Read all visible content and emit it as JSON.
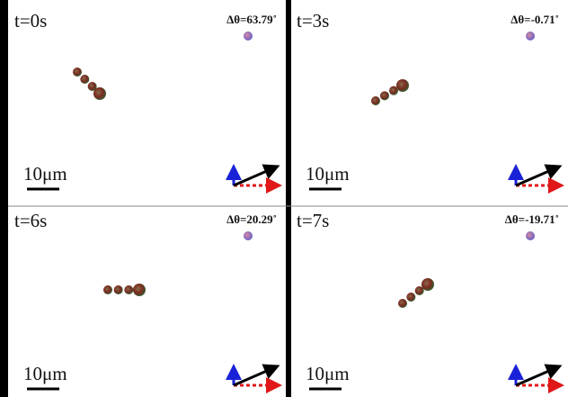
{
  "panels": [
    {
      "time": "t=0s",
      "angle": "Δθ=63.79˚",
      "scale": "10μm"
    },
    {
      "time": "t=3s",
      "angle": "Δθ=-0.71˚",
      "scale": "10μm"
    },
    {
      "time": "t=6s",
      "angle": "Δθ=20.29˚",
      "scale": "10μm"
    },
    {
      "time": "t=7s",
      "angle": "Δθ=-19.71˚",
      "scale": "10μm"
    }
  ]
}
